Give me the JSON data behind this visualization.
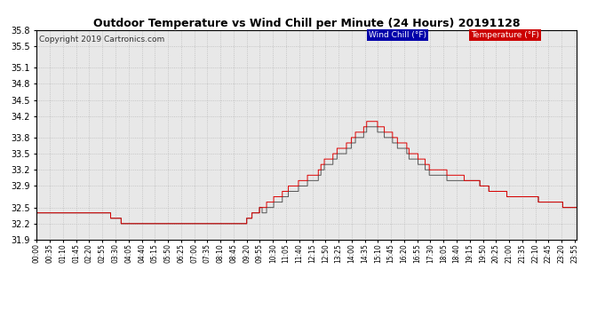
{
  "title": "Outdoor Temperature vs Wind Chill per Minute (24 Hours) 20191128",
  "copyright": "Copyright 2019 Cartronics.com",
  "legend_wind_chill": "Wind Chill (°F)",
  "legend_temperature": "Temperature (°F)",
  "wind_chill_color": "#555555",
  "temperature_color": "#dd0000",
  "background_color": "#ffffff",
  "plot_bg_color": "#e8e8e8",
  "grid_color": "#bbbbbb",
  "ylim_min": 31.9,
  "ylim_max": 35.8,
  "yticks": [
    31.9,
    32.2,
    32.5,
    32.9,
    33.2,
    33.5,
    33.8,
    34.2,
    34.5,
    34.8,
    35.1,
    35.5,
    35.8
  ],
  "xtick_labels": [
    "00:00",
    "00:35",
    "01:10",
    "01:45",
    "02:20",
    "02:55",
    "03:30",
    "04:05",
    "04:40",
    "05:15",
    "05:50",
    "06:25",
    "07:00",
    "07:35",
    "08:10",
    "08:45",
    "09:20",
    "09:55",
    "10:30",
    "11:05",
    "11:40",
    "12:15",
    "12:50",
    "13:25",
    "14:00",
    "14:35",
    "15:10",
    "15:45",
    "16:20",
    "16:55",
    "17:30",
    "18:05",
    "18:40",
    "19:15",
    "19:50",
    "20:25",
    "21:00",
    "21:35",
    "22:10",
    "22:45",
    "23:20",
    "23:55"
  ],
  "legend_wind_bg": "#0000aa",
  "legend_temp_bg": "#cc0000"
}
